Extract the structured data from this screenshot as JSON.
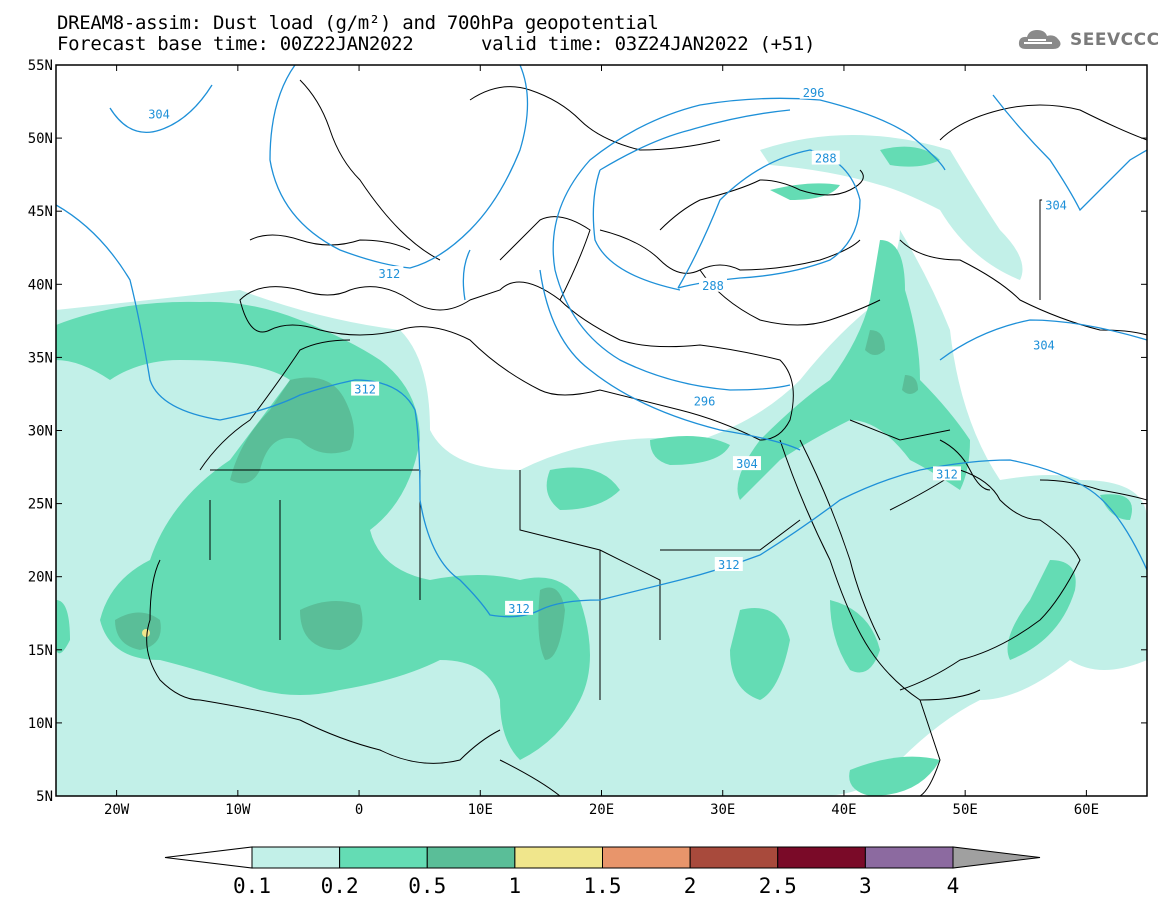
{
  "title": {
    "line1": "DREAM8-assim: Dust load (g/m²) and 700hPa geopotential",
    "line2": "Forecast base time: 00Z22JAN2022",
    "valid": "valid time: 03Z24JAN2022 (+51)"
  },
  "logo": {
    "text": "SEEVCCC",
    "icon": "cloud-icon"
  },
  "axes": {
    "lat_labels": [
      "55N",
      "50N",
      "45N",
      "40N",
      "35N",
      "30N",
      "25N",
      "20N",
      "15N",
      "10N",
      "5N"
    ],
    "lon_labels": [
      "20W",
      "10W",
      "0",
      "10E",
      "20E",
      "30E",
      "40E",
      "50E",
      "60E"
    ],
    "lat_range": [
      5,
      55
    ],
    "lon_range": [
      -25,
      65
    ]
  },
  "contours": {
    "color": "#1e90d8",
    "labels": [
      {
        "text": "304",
        "lon": -16.5,
        "lat": 51.6
      },
      {
        "text": "312",
        "lon": 2.5,
        "lat": 40.7
      },
      {
        "text": "312",
        "lon": 0.5,
        "lat": 32.8
      },
      {
        "text": "288",
        "lon": 38.5,
        "lat": 48.6
      },
      {
        "text": "296",
        "lon": 37.5,
        "lat": 53.1
      },
      {
        "text": "288",
        "lon": 29.2,
        "lat": 39.9
      },
      {
        "text": "296",
        "lon": 28.5,
        "lat": 32.0
      },
      {
        "text": "304",
        "lon": 32.0,
        "lat": 27.7
      },
      {
        "text": "312",
        "lon": 48.5,
        "lat": 27.0
      },
      {
        "text": "312",
        "lon": 30.5,
        "lat": 20.8
      },
      {
        "text": "312",
        "lon": 13.2,
        "lat": 17.8
      },
      {
        "text": "304",
        "lon": 56.5,
        "lat": 35.8
      },
      {
        "text": "304",
        "lon": 57.5,
        "lat": 45.4
      }
    ]
  },
  "colorbar": {
    "labels": [
      "0.1",
      "0.2",
      "0.5",
      "1",
      "1.5",
      "2",
      "2.5",
      "3",
      "4"
    ],
    "colors": [
      "#c2f0e8",
      "#64dcb4",
      "#5abe98",
      "#f0e68c",
      "#e8956b",
      "#a84a3c",
      "#7a0a28",
      "#8c6aa0"
    ],
    "over_color": "#a0a0a0"
  },
  "legend_units": "g/m²"
}
